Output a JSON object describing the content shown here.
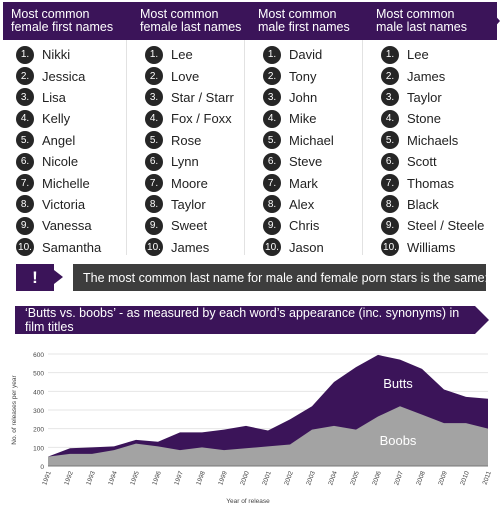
{
  "columns": [
    {
      "header": [
        "Most common",
        "female first names"
      ],
      "names": [
        "Nikki",
        "Jessica",
        "Lisa",
        "Kelly",
        "Angel",
        "Nicole",
        "Michelle",
        "Victoria",
        "Vanessa",
        "Samantha"
      ]
    },
    {
      "header": [
        "Most common",
        "female last names"
      ],
      "names": [
        "Lee",
        "Love",
        "Star / Starr",
        "Fox / Foxx",
        "Rose",
        "Lynn",
        "Moore",
        "Taylor",
        "Sweet",
        "James"
      ]
    },
    {
      "header": [
        "Most common",
        "male first names"
      ],
      "names": [
        "David",
        "Tony",
        "John",
        "Mike",
        "Michael",
        "Steve",
        "Mark",
        "Alex",
        "Chris",
        "Jason"
      ]
    },
    {
      "header": [
        "Most common",
        "male last names"
      ],
      "names": [
        "Lee",
        "James",
        "Taylor",
        "Stone",
        "Michaels",
        "Scott",
        "Thomas",
        "Black",
        "Steel / Steele",
        "Williams"
      ]
    }
  ],
  "rank_labels": [
    "1.",
    "2.",
    "3.",
    "4.",
    "5.",
    "6.",
    "7.",
    "8.",
    "9.",
    "10."
  ],
  "fact": {
    "icon": "!",
    "text": "The most common last name for male and female porn stars is the same: Lee."
  },
  "chart_title": "‘Butts vs. boobs’ - as measured by each word’s appearance (inc. synonyms) in film titles",
  "chart_data": {
    "type": "area",
    "ylabel": "No. of releases per year",
    "xlabel": "Year of release",
    "ylim": [
      0,
      600
    ],
    "yticks": [
      0,
      100,
      200,
      300,
      400,
      500,
      600
    ],
    "x": [
      "1991",
      "1992",
      "1993",
      "1994",
      "1995",
      "1996",
      "1997",
      "1998",
      "1999",
      "2000",
      "2001",
      "2002",
      "2003",
      "2004",
      "2005",
      "2006",
      "2007",
      "2008",
      "2009",
      "2010",
      "2011"
    ],
    "series": [
      {
        "name": "Butts",
        "color": "#3b1459",
        "values": [
          50,
          95,
          100,
          105,
          140,
          130,
          180,
          180,
          195,
          215,
          190,
          250,
          320,
          450,
          530,
          595,
          570,
          520,
          410,
          370,
          360
        ]
      },
      {
        "name": "Boobs",
        "color": "#a3a3a3",
        "values": [
          50,
          65,
          65,
          85,
          120,
          105,
          85,
          100,
          85,
          95,
          105,
          115,
          195,
          215,
          195,
          265,
          320,
          275,
          230,
          230,
          200
        ]
      }
    ]
  }
}
